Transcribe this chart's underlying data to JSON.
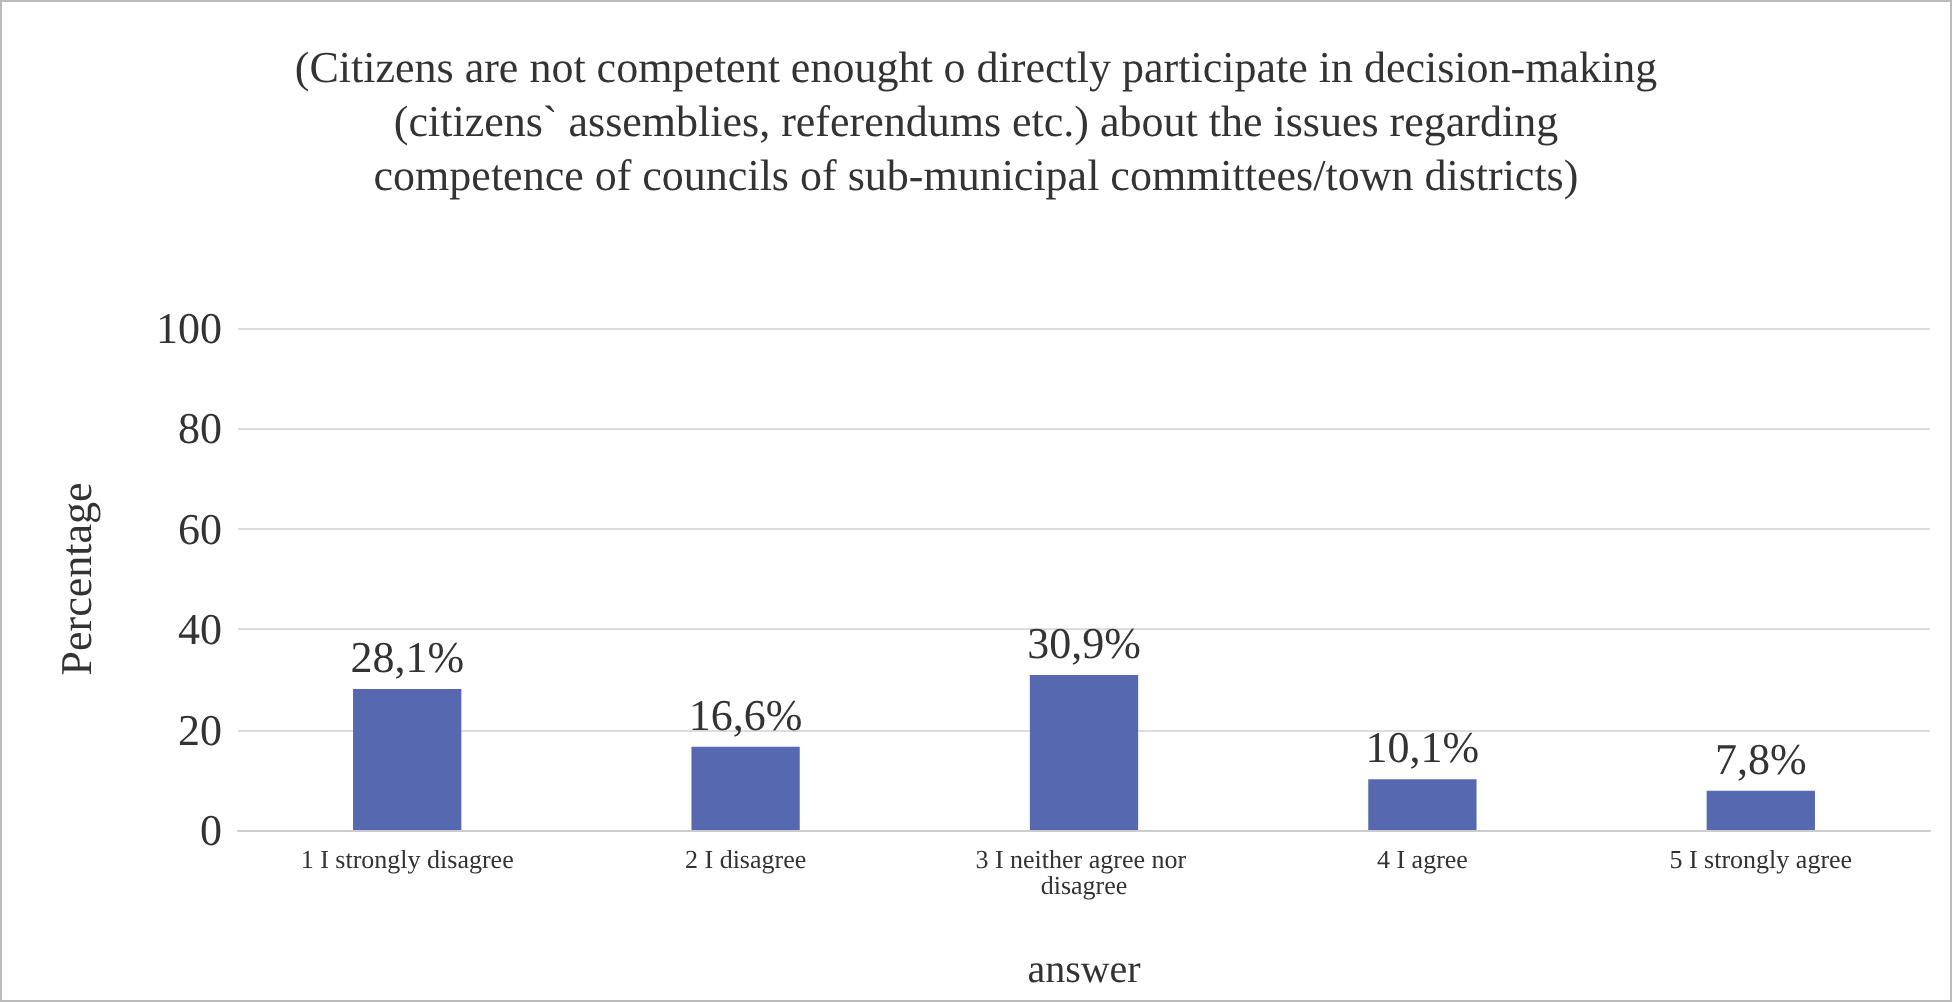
{
  "chart_data": {
    "type": "bar",
    "title": "(Citizens are not competent enought o directly participate in decision-making (citizens` assemblies, referendums etc.) about the issues regarding competence of councils of sub-municipal committees/town districts)",
    "xlabel": "answer",
    "ylabel": "Percentage",
    "categories": [
      "1 I strongly disagree",
      "2 I disagree",
      "3 I neither agree nor disagree",
      "4 I agree",
      "5 I strongly agree"
    ],
    "values": [
      28.1,
      16.6,
      30.9,
      10.1,
      7.8
    ],
    "value_labels": [
      "28,1%",
      "16,6%",
      "30,9%",
      "10,1%",
      "7,8%"
    ],
    "color": "#5568b0",
    "ylim": [
      0,
      100
    ],
    "yticks": [
      0,
      20,
      40,
      60,
      80,
      100
    ],
    "grid": "y"
  }
}
